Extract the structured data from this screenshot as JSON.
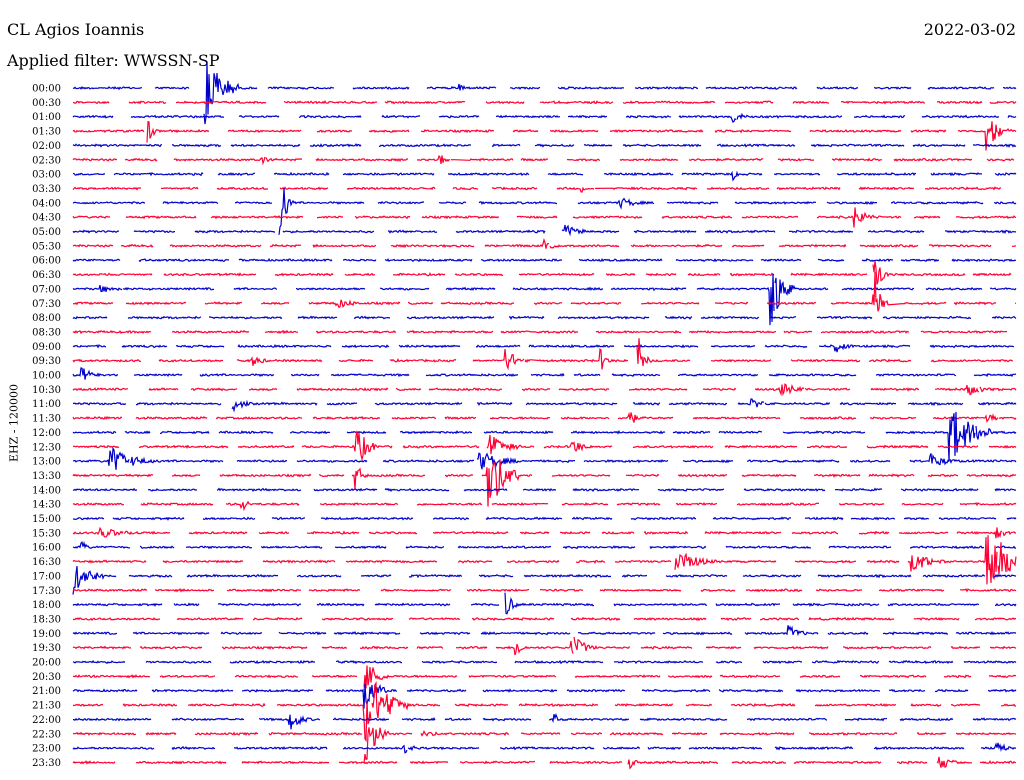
{
  "header": {
    "station": "CL Agios Ioannis",
    "date": "2022-03-02",
    "filter": "Applied filter: WWSSN-SP"
  },
  "colors": {
    "blue": "#0000cc",
    "red": "#ff0033"
  },
  "chart_data": {
    "type": "line",
    "title": "CL Agios Ioannis",
    "ylabel": "EHZ - 120000",
    "grid": false,
    "rows": [
      {
        "time": "00:00",
        "color": "blue",
        "events": [
          {
            "x": 0.14,
            "amp": 1.0,
            "dur": 0.03
          },
          {
            "x": 0.41,
            "amp": 0.15,
            "dur": 0.01
          }
        ]
      },
      {
        "time": "00:30",
        "color": "red",
        "events": []
      },
      {
        "time": "01:00",
        "color": "blue",
        "events": [
          {
            "x": 0.7,
            "amp": 0.2,
            "dur": 0.02
          }
        ]
      },
      {
        "time": "01:30",
        "color": "red",
        "events": [
          {
            "x": 0.08,
            "amp": 0.3,
            "dur": 0.01
          },
          {
            "x": 0.97,
            "amp": 0.5,
            "dur": 0.02
          }
        ]
      },
      {
        "time": "02:00",
        "color": "blue",
        "events": []
      },
      {
        "time": "02:30",
        "color": "red",
        "events": [
          {
            "x": 0.2,
            "amp": 0.15,
            "dur": 0.01
          },
          {
            "x": 0.39,
            "amp": 0.15,
            "dur": 0.01
          }
        ]
      },
      {
        "time": "03:00",
        "color": "blue",
        "events": [
          {
            "x": 0.7,
            "amp": 0.15,
            "dur": 0.01
          }
        ]
      },
      {
        "time": "03:30",
        "color": "red",
        "events": [
          {
            "x": 0.54,
            "amp": 0.1,
            "dur": 0.01
          }
        ]
      },
      {
        "time": "04:00",
        "color": "blue",
        "events": [
          {
            "x": 0.22,
            "amp": 1.0,
            "dur": 0.01
          },
          {
            "x": 0.58,
            "amp": 0.15,
            "dur": 0.03
          }
        ]
      },
      {
        "time": "04:30",
        "color": "red",
        "events": [
          {
            "x": 0.83,
            "amp": 0.3,
            "dur": 0.02
          }
        ]
      },
      {
        "time": "05:00",
        "color": "blue",
        "events": [
          {
            "x": 0.52,
            "amp": 0.2,
            "dur": 0.03
          }
        ]
      },
      {
        "time": "05:30",
        "color": "red",
        "events": [
          {
            "x": 0.5,
            "amp": 0.15,
            "dur": 0.02
          }
        ]
      },
      {
        "time": "06:00",
        "color": "blue",
        "events": []
      },
      {
        "time": "06:30",
        "color": "red",
        "events": [
          {
            "x": 0.85,
            "amp": 1.0,
            "dur": 0.01
          }
        ]
      },
      {
        "time": "07:00",
        "color": "blue",
        "events": [
          {
            "x": 0.74,
            "amp": 1.0,
            "dur": 0.02
          },
          {
            "x": 0.03,
            "amp": 0.1,
            "dur": 0.03
          }
        ]
      },
      {
        "time": "07:30",
        "color": "red",
        "events": [
          {
            "x": 0.85,
            "amp": 1.0,
            "dur": 0.01
          },
          {
            "x": 0.28,
            "amp": 0.15,
            "dur": 0.03
          }
        ]
      },
      {
        "time": "08:00",
        "color": "blue",
        "events": []
      },
      {
        "time": "08:30",
        "color": "red",
        "events": []
      },
      {
        "time": "09:00",
        "color": "blue",
        "events": [
          {
            "x": 0.81,
            "amp": 0.15,
            "dur": 0.02
          }
        ]
      },
      {
        "time": "09:30",
        "color": "red",
        "events": [
          {
            "x": 0.46,
            "amp": 0.3,
            "dur": 0.02
          },
          {
            "x": 0.56,
            "amp": 0.3,
            "dur": 0.01
          },
          {
            "x": 0.6,
            "amp": 0.6,
            "dur": 0.01
          },
          {
            "x": 0.19,
            "amp": 0.15,
            "dur": 0.02
          }
        ]
      },
      {
        "time": "10:00",
        "color": "blue",
        "events": [
          {
            "x": 0.01,
            "amp": 0.2,
            "dur": 0.02
          }
        ]
      },
      {
        "time": "10:30",
        "color": "red",
        "events": [
          {
            "x": 0.75,
            "amp": 0.2,
            "dur": 0.03
          },
          {
            "x": 0.95,
            "amp": 0.15,
            "dur": 0.03
          }
        ]
      },
      {
        "time": "11:00",
        "color": "blue",
        "events": [
          {
            "x": 0.17,
            "amp": 0.2,
            "dur": 0.02
          },
          {
            "x": 0.72,
            "amp": 0.15,
            "dur": 0.02
          }
        ]
      },
      {
        "time": "11:30",
        "color": "red",
        "events": [
          {
            "x": 0.59,
            "amp": 0.3,
            "dur": 0.01
          },
          {
            "x": 0.97,
            "amp": 0.15,
            "dur": 0.02
          }
        ]
      },
      {
        "time": "12:00",
        "color": "blue",
        "events": [
          {
            "x": 0.93,
            "amp": 0.8,
            "dur": 0.04
          }
        ]
      },
      {
        "time": "12:30",
        "color": "red",
        "events": [
          {
            "x": 0.3,
            "amp": 0.6,
            "dur": 0.02
          },
          {
            "x": 0.44,
            "amp": 0.4,
            "dur": 0.03
          },
          {
            "x": 0.53,
            "amp": 0.2,
            "dur": 0.02
          }
        ]
      },
      {
        "time": "13:00",
        "color": "blue",
        "events": [
          {
            "x": 0.04,
            "amp": 0.4,
            "dur": 0.04
          },
          {
            "x": 0.43,
            "amp": 0.3,
            "dur": 0.04
          },
          {
            "x": 0.91,
            "amp": 0.2,
            "dur": 0.03
          }
        ]
      },
      {
        "time": "13:30",
        "color": "red",
        "events": [
          {
            "x": 0.44,
            "amp": 1.0,
            "dur": 0.03
          },
          {
            "x": 0.3,
            "amp": 0.4,
            "dur": 0.01
          }
        ]
      },
      {
        "time": "14:00",
        "color": "blue",
        "events": []
      },
      {
        "time": "14:30",
        "color": "red",
        "events": [
          {
            "x": 0.18,
            "amp": 0.2,
            "dur": 0.01
          }
        ]
      },
      {
        "time": "15:00",
        "color": "blue",
        "events": []
      },
      {
        "time": "15:30",
        "color": "red",
        "events": [
          {
            "x": 0.03,
            "amp": 0.15,
            "dur": 0.04
          },
          {
            "x": 0.98,
            "amp": 0.15,
            "dur": 0.02
          }
        ]
      },
      {
        "time": "16:00",
        "color": "blue",
        "events": [
          {
            "x": 0.01,
            "amp": 0.15,
            "dur": 0.01
          }
        ]
      },
      {
        "time": "16:30",
        "color": "red",
        "events": [
          {
            "x": 0.64,
            "amp": 0.3,
            "dur": 0.04
          },
          {
            "x": 0.89,
            "amp": 0.3,
            "dur": 0.03
          },
          {
            "x": 0.97,
            "amp": 1.0,
            "dur": 0.04
          }
        ]
      },
      {
        "time": "17:00",
        "color": "blue",
        "events": [
          {
            "x": 0.0,
            "amp": 0.5,
            "dur": 0.03
          }
        ]
      },
      {
        "time": "17:30",
        "color": "red",
        "events": []
      },
      {
        "time": "18:00",
        "color": "blue",
        "events": [
          {
            "x": 0.46,
            "amp": 0.4,
            "dur": 0.01
          }
        ]
      },
      {
        "time": "18:30",
        "color": "red",
        "events": []
      },
      {
        "time": "19:00",
        "color": "blue",
        "events": [
          {
            "x": 0.76,
            "amp": 0.2,
            "dur": 0.02
          }
        ]
      },
      {
        "time": "19:30",
        "color": "red",
        "events": [
          {
            "x": 0.47,
            "amp": 0.3,
            "dur": 0.01
          },
          {
            "x": 0.53,
            "amp": 0.4,
            "dur": 0.02
          }
        ]
      },
      {
        "time": "20:00",
        "color": "blue",
        "events": []
      },
      {
        "time": "20:30",
        "color": "red",
        "events": [
          {
            "x": 0.31,
            "amp": 0.5,
            "dur": 0.02
          }
        ]
      },
      {
        "time": "21:00",
        "color": "blue",
        "events": [
          {
            "x": 0.31,
            "amp": 0.6,
            "dur": 0.02
          }
        ]
      },
      {
        "time": "21:30",
        "color": "red",
        "events": [
          {
            "x": 0.31,
            "amp": 1.0,
            "dur": 0.04
          }
        ]
      },
      {
        "time": "22:00",
        "color": "blue",
        "events": [
          {
            "x": 0.23,
            "amp": 0.3,
            "dur": 0.02
          },
          {
            "x": 0.51,
            "amp": 0.2,
            "dur": 0.01
          }
        ]
      },
      {
        "time": "22:30",
        "color": "red",
        "events": [
          {
            "x": 0.31,
            "amp": 0.8,
            "dur": 0.02
          },
          {
            "x": 0.37,
            "amp": 0.15,
            "dur": 0.02
          }
        ]
      },
      {
        "time": "23:00",
        "color": "blue",
        "events": [
          {
            "x": 0.35,
            "amp": 0.15,
            "dur": 0.02
          },
          {
            "x": 0.98,
            "amp": 0.15,
            "dur": 0.02
          }
        ]
      },
      {
        "time": "23:30",
        "color": "red",
        "events": [
          {
            "x": 0.59,
            "amp": 0.2,
            "dur": 0.01
          },
          {
            "x": 0.92,
            "amp": 0.2,
            "dur": 0.02
          }
        ]
      }
    ]
  }
}
